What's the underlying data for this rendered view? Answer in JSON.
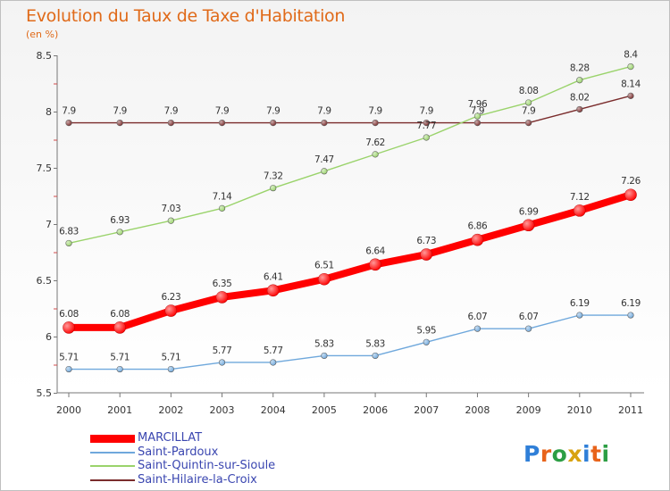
{
  "title": "Evolution du Taux de Taxe d'Habitation",
  "unit": "(en %)",
  "logo": "Proxiti",
  "chart_data": {
    "type": "line",
    "title": "Evolution du Taux de Taxe d'Habitation",
    "subtitle": "(en %)",
    "x": [
      "2000",
      "2001",
      "2002",
      "2003",
      "2004",
      "2005",
      "2006",
      "2007",
      "2008",
      "2009",
      "2010",
      "2011"
    ],
    "ylim": [
      5.5,
      8.5
    ],
    "yticks": [
      "5.5",
      "6",
      "6.5",
      "7",
      "7.5",
      "8",
      "8.5"
    ],
    "grid": false,
    "legend_position": "bottom-left",
    "series": [
      {
        "name": "MARCILLAT",
        "color": "#ff0000",
        "values": [
          6.08,
          6.08,
          6.23,
          6.35,
          6.41,
          6.51,
          6.64,
          6.73,
          6.86,
          6.99,
          7.12,
          7.26
        ],
        "labels": [
          "6.08",
          "6.08",
          "6.23",
          "6.35",
          "6.41",
          "6.51",
          "6.64",
          "6.73",
          "6.86",
          "6.99",
          "7.12",
          "7.26"
        ]
      },
      {
        "name": "Saint-Pardoux",
        "color": "#6fa8dc",
        "values": [
          5.71,
          5.71,
          5.71,
          5.77,
          5.77,
          5.83,
          5.83,
          5.95,
          6.07,
          6.07,
          6.19,
          6.19
        ],
        "labels": [
          "5.71",
          "5.71",
          "5.71",
          "5.77",
          "5.77",
          "5.83",
          "5.83",
          "5.95",
          "6.07",
          "6.07",
          "6.19",
          "6.19"
        ]
      },
      {
        "name": "Saint-Quintin-sur-Sioule",
        "color": "#9ad36b",
        "values": [
          6.83,
          6.93,
          7.03,
          7.14,
          7.32,
          7.47,
          7.62,
          7.77,
          7.96,
          8.08,
          8.28,
          8.4
        ],
        "labels": [
          "6.83",
          "6.93",
          "7.03",
          "7.14",
          "7.32",
          "7.47",
          "7.62",
          "7.77",
          "7.96",
          "8.08",
          "8.28",
          "8.4"
        ]
      },
      {
        "name": "Saint-Hilaire-la-Croix",
        "color": "#7a2c2c",
        "values": [
          7.9,
          7.9,
          7.9,
          7.9,
          7.9,
          7.9,
          7.9,
          7.9,
          7.9,
          7.9,
          8.02,
          8.14
        ],
        "labels": [
          "7.9",
          "7.9",
          "7.9",
          "7.9",
          "7.9",
          "7.9",
          "7.9",
          "7.9",
          "7.9",
          "7.9",
          "8.02",
          "8.14"
        ]
      }
    ]
  }
}
